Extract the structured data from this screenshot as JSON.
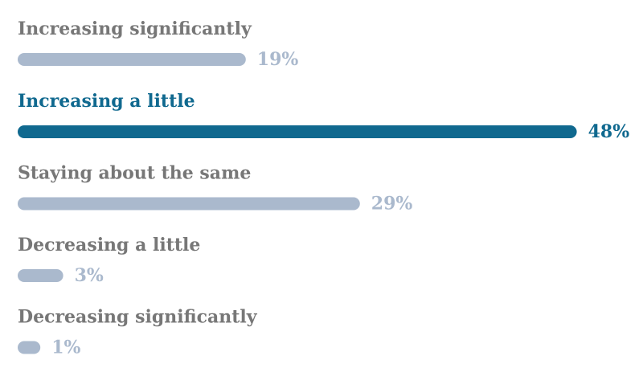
{
  "chart_data": {
    "type": "bar",
    "orientation": "horizontal",
    "categories": [
      "Increasing significantly",
      "Increasing a little",
      "Staying about the same",
      "Decreasing a little",
      "Decreasing significantly"
    ],
    "values": [
      19,
      48,
      29,
      3,
      1
    ],
    "value_labels": [
      "19%",
      "48%",
      "29%",
      "3%",
      "1%"
    ],
    "color": "#aab9cd",
    "highlight": 1,
    "highlight_color": "#10698f"
  }
}
